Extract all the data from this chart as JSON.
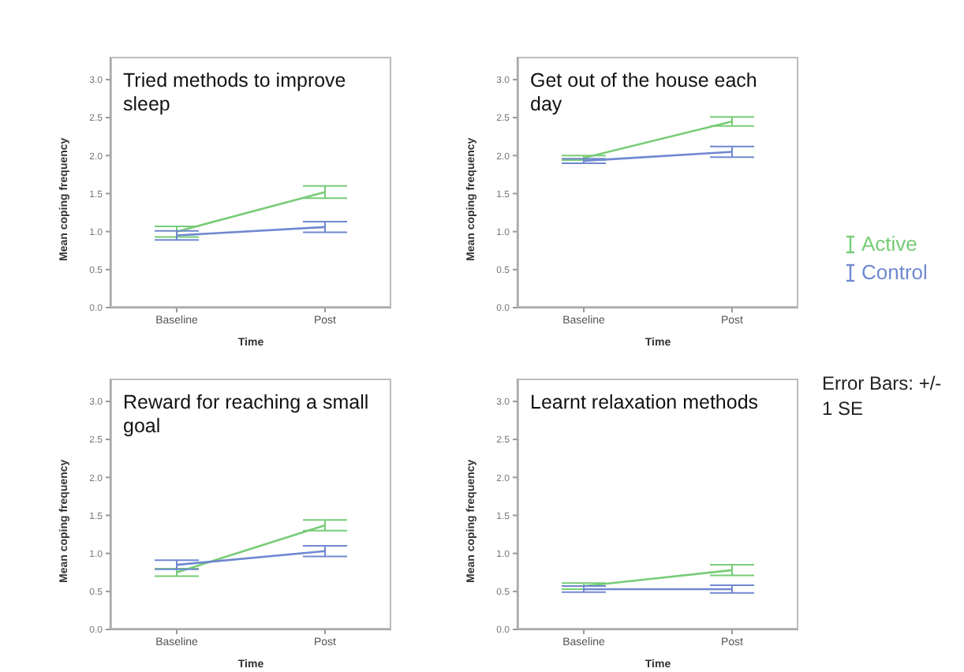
{
  "chart_data": [
    {
      "type": "line",
      "title": "Tried methods to improve sleep",
      "xlabel": "Time",
      "ylabel": "Mean coping frequency",
      "categories": [
        "Baseline",
        "Post"
      ],
      "ylim": [
        0,
        3.3
      ],
      "yticks": [
        {
          "value": 0,
          "label": "0.0"
        },
        {
          "value": 0.5,
          "label": "0.5"
        },
        {
          "value": 1,
          "label": "1.0"
        },
        {
          "value": 1.5,
          "label": "1.5"
        },
        {
          "value": 2,
          "label": "2.0"
        },
        {
          "value": 2.5,
          "label": "2.5"
        },
        {
          "value": 3,
          "label": "3.0"
        }
      ],
      "grid": false,
      "legend": false,
      "marker": "none",
      "line_style": "solid",
      "series": [
        {
          "color": "#77cc77",
          "values": [
            1.0,
            1.52
          ],
          "errors": [
            0.07,
            0.08
          ]
        },
        {
          "color": "#7088d0",
          "values": [
            0.95,
            1.06
          ],
          "errors": [
            0.06,
            0.07
          ]
        }
      ]
    },
    {
      "type": "line",
      "title": "Get out of the house each day",
      "xlabel": "Time",
      "ylabel": "Mean coping frequency",
      "categories": [
        "Baseline",
        "Post"
      ],
      "ylim": [
        0,
        3.3
      ],
      "yticks": [
        {
          "value": 0,
          "label": "0.0"
        },
        {
          "value": 0.5,
          "label": "0.5"
        },
        {
          "value": 1,
          "label": "1.0"
        },
        {
          "value": 1.5,
          "label": "1.5"
        },
        {
          "value": 2,
          "label": "2.0"
        },
        {
          "value": 2.5,
          "label": "2.5"
        },
        {
          "value": 3,
          "label": "3.0"
        }
      ],
      "grid": false,
      "legend": "right",
      "marker": "none",
      "line_style": "solid",
      "series": [
        {
          "name": "Active",
          "color": "#77cc77",
          "values": [
            1.97,
            2.45
          ],
          "errors": [
            0.03,
            0.06
          ]
        },
        {
          "name": "Control",
          "color": "#7088d0",
          "values": [
            1.93,
            2.05
          ],
          "errors": [
            0.03,
            0.07
          ]
        }
      ]
    },
    {
      "type": "line",
      "title": "Reward for reaching a small goal",
      "xlabel": "Time",
      "ylabel": "Mean coping frequency",
      "categories": [
        "Baseline",
        "Post"
      ],
      "ylim": [
        0,
        3.3
      ],
      "yticks": [
        {
          "value": 0,
          "label": "0.0"
        },
        {
          "value": 0.5,
          "label": "0.5"
        },
        {
          "value": 1,
          "label": "1.0"
        },
        {
          "value": 1.5,
          "label": "1.5"
        },
        {
          "value": 2,
          "label": "2.0"
        },
        {
          "value": 2.5,
          "label": "2.5"
        },
        {
          "value": 3,
          "label": "3.0"
        }
      ],
      "grid": false,
      "legend": false,
      "marker": "none",
      "line_style": "solid",
      "series": [
        {
          "color": "#77cc77",
          "values": [
            0.75,
            1.37
          ],
          "errors": [
            0.05,
            0.07
          ]
        },
        {
          "color": "#7088d0",
          "values": [
            0.85,
            1.03
          ],
          "errors": [
            0.06,
            0.07
          ]
        }
      ]
    },
    {
      "type": "line",
      "title": "Learnt relaxation methods",
      "xlabel": "Time",
      "ylabel": "Mean coping frequency",
      "categories": [
        "Baseline",
        "Post"
      ],
      "ylim": [
        0,
        3.3
      ],
      "yticks": [
        {
          "value": 0,
          "label": "0.0"
        },
        {
          "value": 0.5,
          "label": "0.5"
        },
        {
          "value": 1,
          "label": "1.0"
        },
        {
          "value": 1.5,
          "label": "1.5"
        },
        {
          "value": 2,
          "label": "2.0"
        },
        {
          "value": 2.5,
          "label": "2.5"
        },
        {
          "value": 3,
          "label": "3.0"
        }
      ],
      "grid": false,
      "legend": false,
      "marker": "none",
      "line_style": "solid",
      "annotations": [
        "Error Bars: +/- 1 SE"
      ],
      "series": [
        {
          "color": "#77cc77",
          "values": [
            0.57,
            0.78
          ],
          "errors": [
            0.04,
            0.07
          ]
        },
        {
          "color": "#7088d0",
          "values": [
            0.53,
            0.53
          ],
          "errors": [
            0.04,
            0.05
          ]
        }
      ]
    }
  ]
}
